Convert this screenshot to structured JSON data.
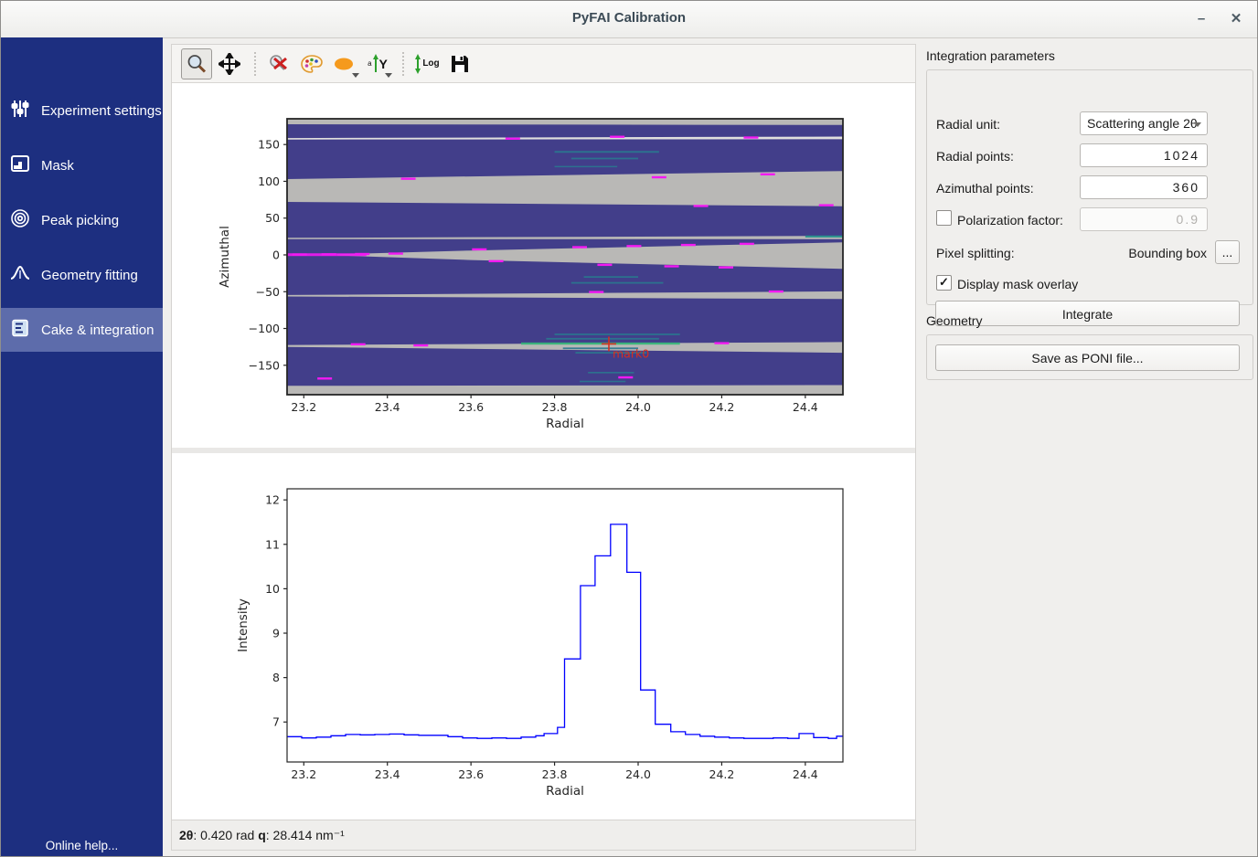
{
  "window": {
    "title": "PyFAI Calibration",
    "minimize_glyph": "–",
    "close_glyph": "✕"
  },
  "sidebar": {
    "items": [
      {
        "label": "Experiment settings",
        "icon": "sliders-icon",
        "selected": false
      },
      {
        "label": "Mask",
        "icon": "mask-image-icon",
        "selected": false
      },
      {
        "label": "Peak picking",
        "icon": "concentric-rings-icon",
        "selected": false
      },
      {
        "label": "Geometry fitting",
        "icon": "peak-curve-icon",
        "selected": false
      },
      {
        "label": "Cake & integration",
        "icon": "cake-layers-icon",
        "selected": true
      }
    ],
    "footer": "Online help...",
    "colors": {
      "background": "#1d2f80",
      "selected": "#5d6cab"
    }
  },
  "toolbar": {
    "icons": [
      "zoom-icon",
      "pan-icon",
      "zoom-reset-icon",
      "colormap-palette-icon",
      "mask-ellipse-icon",
      "y-axis-orientation-icon",
      "log-scale-icon",
      "save-icon"
    ],
    "log_label": "Log",
    "y_label": "Y",
    "a_label": "a"
  },
  "status": {
    "tth_label": "2θ",
    "tth_value": ": 0.420 rad ",
    "q_label": "q",
    "q_value": ": 28.414 nm⁻¹"
  },
  "panel": {
    "integration": {
      "title": "Integration parameters",
      "radial_unit_label": "Radial unit:",
      "radial_unit_value": "Scattering angle 2θ",
      "radial_points_label": "Radial points:",
      "radial_points_value": "1024",
      "azimuthal_points_label": "Azimuthal points:",
      "azimuthal_points_value": "360",
      "polarization_label": "Polarization factor:",
      "polarization_value": "0.9",
      "polarization_checked": false,
      "pixel_splitting_label": "Pixel splitting:",
      "pixel_splitting_value": "Bounding box",
      "pixel_splitting_more": "...",
      "mask_overlay_label": "Display mask overlay",
      "mask_overlay_checked": true,
      "check_glyph": "✓",
      "integrate_button": "Integrate"
    },
    "geometry": {
      "title": "Geometry",
      "save_button": "Save as PONI file..."
    }
  },
  "chart_data": [
    {
      "type": "heatmap",
      "title": "",
      "xlabel": "Radial",
      "ylabel": "Azimuthal",
      "xlim": [
        23.16,
        24.49
      ],
      "ylim": [
        -190,
        185
      ],
      "xticks": [
        {
          "v": 23.2,
          "label": "23.2"
        },
        {
          "v": 23.4,
          "label": "23.4"
        },
        {
          "v": 23.6,
          "label": "23.6"
        },
        {
          "v": 23.8,
          "label": "23.8"
        },
        {
          "v": 24.0,
          "label": "24.0"
        },
        {
          "v": 24.2,
          "label": "24.2"
        },
        {
          "v": 24.4,
          "label": "24.4"
        }
      ],
      "yticks": [
        {
          "v": 150,
          "label": "150"
        },
        {
          "v": 100,
          "label": "100"
        },
        {
          "v": 50,
          "label": "50"
        },
        {
          "v": 0,
          "label": "0"
        },
        {
          "v": -50,
          "label": "−50"
        },
        {
          "v": -100,
          "label": "−100"
        },
        {
          "v": -150,
          "label": "−150"
        }
      ],
      "background_color": "#423e8a",
      "masked_color": "#b9b8b6",
      "masked_regions": [
        {
          "poly": [
            [
              23.16,
              185
            ],
            [
              24.49,
              185
            ],
            [
              24.49,
              176.5
            ],
            [
              23.16,
              177.5
            ]
          ]
        },
        {
          "poly": [
            [
              23.16,
              158.8
            ],
            [
              24.49,
              160.8
            ],
            [
              24.49,
              157.2
            ],
            [
              23.16,
              156.8
            ]
          ],
          "color": "#e0dfdd"
        },
        {
          "poly": [
            [
              23.16,
              103
            ],
            [
              24.49,
              114
            ],
            [
              24.49,
              66
            ],
            [
              23.16,
              72
            ]
          ]
        },
        {
          "poly": [
            [
              23.16,
              23.2
            ],
            [
              24.49,
              25.8
            ],
            [
              24.49,
              21.4
            ],
            [
              23.16,
              21.4
            ]
          ]
        },
        {
          "poly": [
            [
              23.28,
              0.8
            ],
            [
              23.6,
              6
            ],
            [
              24.49,
              17
            ],
            [
              24.49,
              -19
            ],
            [
              23.6,
              -7
            ],
            [
              23.28,
              -0.8
            ]
          ]
        },
        {
          "poly": [
            [
              23.16,
              -54.5
            ],
            [
              24.49,
              -49.5
            ],
            [
              24.49,
              -60
            ],
            [
              23.16,
              -56.5
            ]
          ]
        },
        {
          "poly": [
            [
              23.16,
              -122.5
            ],
            [
              24.49,
              -118.5
            ],
            [
              24.49,
              -133
            ],
            [
              23.16,
              -125
            ]
          ]
        },
        {
          "poly": [
            [
              23.16,
              -178
            ],
            [
              24.49,
              -177
            ],
            [
              24.49,
              -190
            ],
            [
              23.16,
              -190
            ]
          ]
        }
      ],
      "magenta_marks": [
        [
          23.19,
          0.5
        ],
        [
          23.26,
          0.8
        ],
        [
          23.34,
          1.2
        ],
        [
          23.42,
          1.8
        ],
        [
          23.45,
          103.5
        ],
        [
          24.05,
          105.5
        ],
        [
          24.31,
          109.5
        ],
        [
          23.7,
          158
        ],
        [
          23.95,
          160.5
        ],
        [
          24.27,
          159.5
        ],
        [
          23.62,
          7.5
        ],
        [
          23.86,
          10.5
        ],
        [
          23.99,
          12
        ],
        [
          24.12,
          13.5
        ],
        [
          24.26,
          15
        ],
        [
          23.66,
          -8.5
        ],
        [
          23.92,
          -13.5
        ],
        [
          24.08,
          -15.5
        ],
        [
          24.21,
          -17
        ],
        [
          23.9,
          -50.5
        ],
        [
          24.33,
          -49.8
        ],
        [
          23.33,
          -121.5
        ],
        [
          23.48,
          -123
        ],
        [
          24.2,
          -120
        ],
        [
          23.97,
          -166.5
        ],
        [
          23.25,
          -168
        ],
        [
          24.15,
          66.5
        ],
        [
          24.45,
          67.5
        ]
      ],
      "magenta_color": "#f219f2",
      "streaks": [
        {
          "x1": 23.8,
          "x2": 24.05,
          "az": 140,
          "color": "#2a788e",
          "h": 2
        },
        {
          "x1": 23.84,
          "x2": 24.0,
          "az": 131,
          "color": "#2a788e",
          "h": 1.8
        },
        {
          "x1": 23.8,
          "x2": 23.95,
          "az": 120,
          "color": "#2a788e",
          "h": 1.5
        },
        {
          "x1": 23.16,
          "x2": 23.35,
          "az": 0.3,
          "color": "#f219f2",
          "h": 3
        },
        {
          "x1": 23.87,
          "x2": 24.0,
          "az": -30,
          "color": "#2a788e",
          "h": 1.8
        },
        {
          "x1": 23.84,
          "x2": 24.06,
          "az": -38,
          "color": "#2a788e",
          "h": 1.8
        },
        {
          "x1": 24.4,
          "x2": 24.49,
          "az": 25,
          "color": "#21918c",
          "h": 2.2
        },
        {
          "x1": 23.8,
          "x2": 24.1,
          "az": -108,
          "color": "#2a788e",
          "h": 1.8
        },
        {
          "x1": 23.78,
          "x2": 24.05,
          "az": -114,
          "color": "#2a788e",
          "h": 1.8
        },
        {
          "x1": 23.72,
          "x2": 24.1,
          "az": -120.5,
          "color": "#35b779",
          "h": 2.4
        },
        {
          "x1": 23.82,
          "x2": 24.0,
          "az": -127,
          "color": "#2a788e",
          "h": 1.8
        },
        {
          "x1": 23.85,
          "x2": 24.02,
          "az": -133,
          "color": "#2a788e",
          "h": 1.8
        },
        {
          "x1": 23.88,
          "x2": 23.99,
          "az": -160,
          "color": "#2a788e",
          "h": 1.6
        },
        {
          "x1": 23.86,
          "x2": 23.97,
          "az": -172,
          "color": "#2a788e",
          "h": 1.6
        }
      ],
      "marker": {
        "x": 23.93,
        "az": -121,
        "label": "mark0",
        "color": "#d62f20"
      }
    },
    {
      "type": "line",
      "step": true,
      "title": "",
      "xlabel": "Radial",
      "ylabel": "Intensity",
      "xlim": [
        23.16,
        24.49
      ],
      "ylim": [
        6.1,
        12.25
      ],
      "xticks": [
        {
          "v": 23.2,
          "label": "23.2"
        },
        {
          "v": 23.4,
          "label": "23.4"
        },
        {
          "v": 23.6,
          "label": "23.6"
        },
        {
          "v": 23.8,
          "label": "23.8"
        },
        {
          "v": 24.0,
          "label": "24.0"
        },
        {
          "v": 24.2,
          "label": "24.2"
        },
        {
          "v": 24.4,
          "label": "24.4"
        }
      ],
      "yticks": [
        {
          "v": 7,
          "label": "7"
        },
        {
          "v": 8,
          "label": "8"
        },
        {
          "v": 9,
          "label": "9"
        },
        {
          "v": 10,
          "label": "10"
        },
        {
          "v": 11,
          "label": "11"
        },
        {
          "v": 12,
          "label": "12"
        }
      ],
      "color": "#0000ff",
      "x": [
        23.16,
        23.195,
        23.23,
        23.265,
        23.3,
        23.335,
        23.37,
        23.405,
        23.44,
        23.475,
        23.51,
        23.545,
        23.58,
        23.615,
        23.65,
        23.685,
        23.72,
        23.755,
        23.775,
        23.807,
        23.824,
        23.862,
        23.897,
        23.934,
        23.973,
        24.006,
        24.041,
        24.078,
        24.113,
        24.148,
        24.183,
        24.218,
        24.253,
        24.288,
        24.323,
        24.358,
        24.385,
        24.42,
        24.455,
        24.475
      ],
      "y": [
        6.67,
        6.64,
        6.66,
        6.69,
        6.72,
        6.71,
        6.72,
        6.73,
        6.71,
        6.7,
        6.7,
        6.67,
        6.64,
        6.63,
        6.64,
        6.63,
        6.66,
        6.69,
        6.74,
        6.88,
        8.42,
        10.07,
        10.74,
        11.45,
        10.37,
        7.72,
        6.95,
        6.78,
        6.72,
        6.68,
        6.66,
        6.64,
        6.63,
        6.63,
        6.64,
        6.63,
        6.74,
        6.65,
        6.63,
        6.68
      ]
    }
  ]
}
